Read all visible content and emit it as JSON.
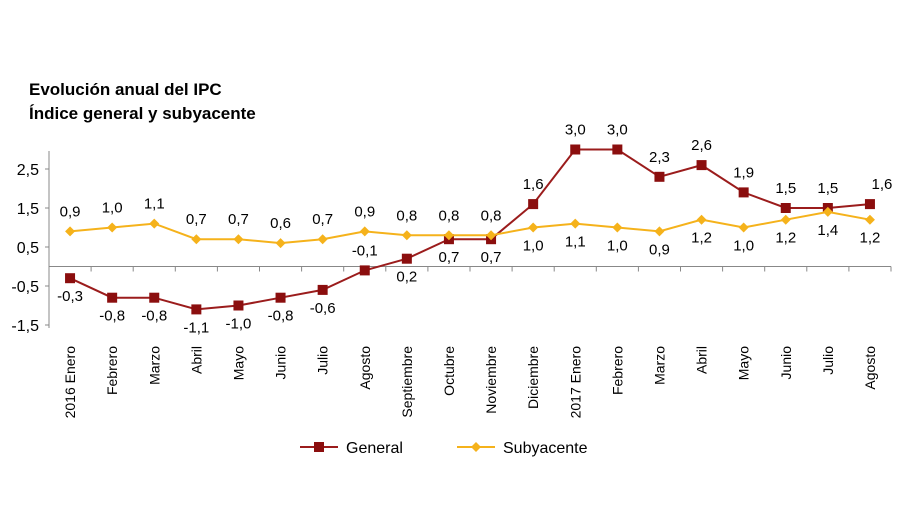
{
  "chart_data": {
    "type": "line",
    "title": "Evolución anual del IPC",
    "subtitle": "Índice general y subyacente",
    "categories": [
      "2016 Enero",
      "Febrero",
      "Marzo",
      "Abril",
      "Mayo",
      "Junio",
      "Julio",
      "Agosto",
      "Septiembre",
      "Octubre",
      "Noviembre",
      "Diciembre",
      "2017 Enero",
      "Febrero",
      "Marzo",
      "Abril",
      "Mayo",
      "Junio",
      "Julio",
      "Agosto"
    ],
    "y_ticks": [
      "2,5",
      "1,5",
      "0,5",
      "-0,5",
      "-1,5"
    ],
    "ylim": [
      -1.5,
      3.0
    ],
    "grid": false,
    "legend_position": "bottom",
    "series": [
      {
        "name": "General",
        "color": "#9b1c1c",
        "marker": "square",
        "values": [
          -0.3,
          -0.8,
          -0.8,
          -1.1,
          -1.0,
          -0.8,
          -0.6,
          -0.1,
          0.2,
          0.7,
          0.7,
          1.6,
          3.0,
          3.0,
          2.3,
          2.6,
          1.9,
          1.5,
          1.5,
          1.6
        ]
      },
      {
        "name": "Subyacente",
        "color": "#f5b21b",
        "marker": "diamond",
        "values": [
          0.9,
          1.0,
          1.1,
          0.7,
          0.7,
          0.6,
          0.7,
          0.9,
          0.8,
          0.8,
          0.8,
          1.0,
          1.1,
          1.0,
          0.9,
          1.2,
          1.0,
          1.2,
          1.4,
          1.2
        ]
      }
    ]
  }
}
